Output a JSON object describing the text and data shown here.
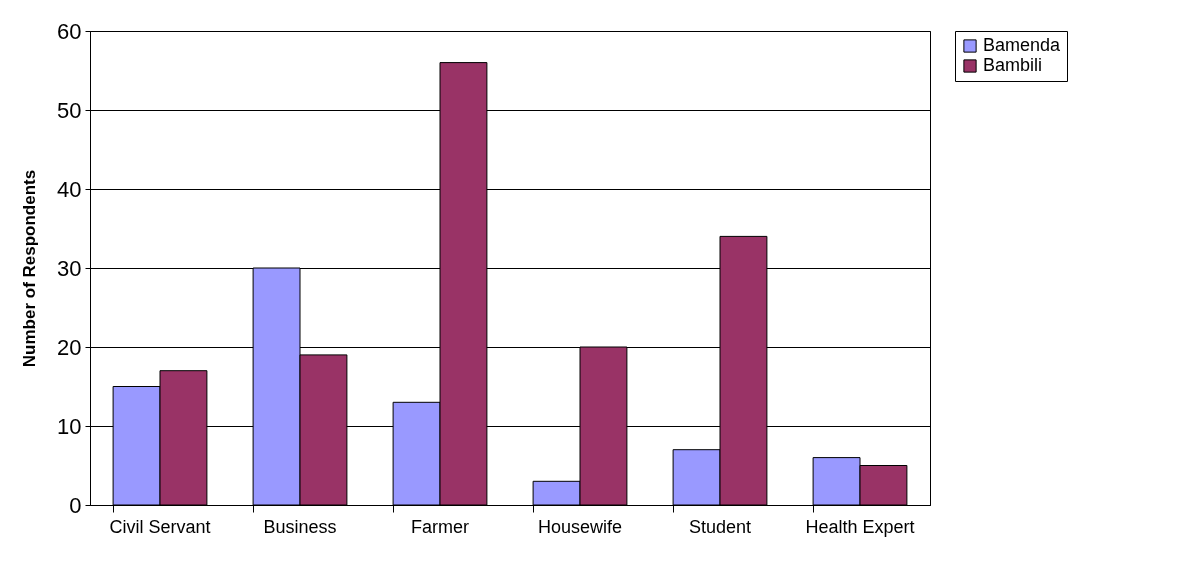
{
  "chart_data": {
    "type": "bar",
    "ylabel": "Number of Respondents",
    "categories": [
      "Civil Servant",
      "Business",
      "Farmer",
      "Housewife",
      "Student",
      "Health Expert"
    ],
    "series": [
      {
        "name": "Bamenda",
        "color": "#9999ff",
        "values": [
          15,
          30,
          13,
          3,
          7,
          6
        ]
      },
      {
        "name": "Bambili",
        "color": "#993366",
        "values": [
          17,
          19,
          56,
          20,
          34,
          5
        ]
      }
    ],
    "ylim": [
      0,
      60
    ],
    "yticks": [
      0,
      10,
      20,
      30,
      40,
      50,
      60
    ],
    "grid": "y",
    "legend": "right"
  }
}
